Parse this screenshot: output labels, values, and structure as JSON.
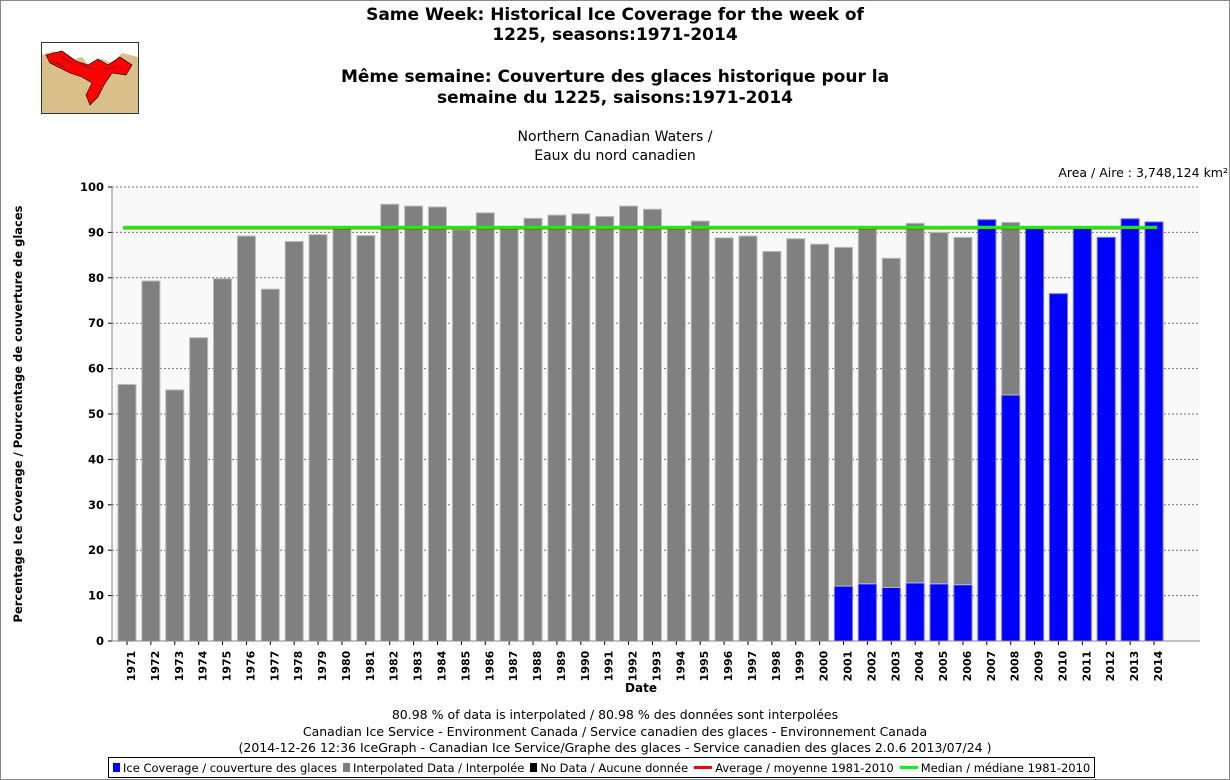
{
  "title": {
    "en_line1": "Same Week: Historical Ice Coverage for the week of",
    "en_line2": "1225, seasons:1971-2014",
    "fr_line1": "Même semaine: Couverture des glaces historique pour la",
    "fr_line2": "semaine du 1225, saisons:1971-2014"
  },
  "region": {
    "line1": "Northern Canadian Waters /",
    "line2": "Eaux du nord canadien"
  },
  "area": "Area / Aire : 3,748,124 km²",
  "footer": {
    "interp": "80.98 % of data is interpolated / 80.98 % des données sont interpolées",
    "credit": "Canadian Ice Service - Environment Canada / Service canadien des glaces - Environnement Canada",
    "version": "(2014-12-26 12:36 IceGraph - Canadian Ice Service/Graphe des glaces - Service canadien des glaces 2.0.6 2013/07/24 )"
  },
  "legend": [
    {
      "label": "Ice Coverage / couverture des glaces",
      "color": "#0000ff",
      "kind": "box"
    },
    {
      "label": "Interpolated Data / Interpolée",
      "color": "#808080",
      "kind": "box"
    },
    {
      "label": "No Data / Aucune donnée",
      "color": "#000000",
      "kind": "box"
    },
    {
      "label": "Average / moyenne 1981-2010",
      "color": "#ff0000",
      "kind": "line"
    },
    {
      "label": "Median / médiane 1981-2010",
      "color": "#00ff00",
      "kind": "line"
    }
  ],
  "chart_data": {
    "type": "bar",
    "stacked": true,
    "xlabel": "Date",
    "ylabel": "Percentage Ice Coverage / Pourcentage de couverture de glaces",
    "ylim": [
      0,
      100
    ],
    "yticks": [
      0,
      10,
      20,
      30,
      40,
      50,
      60,
      70,
      80,
      90,
      100
    ],
    "grid": true,
    "legend_position": "bottom",
    "categories": [
      "1971",
      "1972",
      "1973",
      "1974",
      "1975",
      "1976",
      "1977",
      "1978",
      "1979",
      "1980",
      "1981",
      "1982",
      "1983",
      "1984",
      "1985",
      "1986",
      "1987",
      "1988",
      "1989",
      "1990",
      "1991",
      "1992",
      "1993",
      "1994",
      "1995",
      "1996",
      "1997",
      "1998",
      "1999",
      "2000",
      "2001",
      "2002",
      "2003",
      "2004",
      "2005",
      "2006",
      "2007",
      "2008",
      "2009",
      "2010",
      "2011",
      "2012",
      "2013",
      "2014"
    ],
    "series": [
      {
        "name": "Ice Coverage / couverture des glaces",
        "color": "#0000ff",
        "values": [
          0,
          0,
          0,
          0,
          0,
          0,
          0,
          0,
          0,
          0,
          0,
          0,
          0,
          0,
          0,
          0,
          0,
          0,
          0,
          0,
          0,
          0,
          0,
          0,
          0,
          0,
          0,
          0,
          0,
          0,
          12.1,
          12.6,
          11.8,
          12.8,
          12.6,
          12.4,
          92.8,
          54.2,
          90.8,
          76.5,
          91.2,
          88.9,
          93.0,
          92.3
        ]
      },
      {
        "name": "Interpolated Data / Interpolée",
        "color": "#808080",
        "values": [
          56.5,
          79.3,
          55.3,
          66.8,
          79.8,
          89.2,
          77.5,
          88.0,
          89.5,
          91.2,
          89.3,
          96.2,
          95.8,
          95.6,
          90.6,
          94.3,
          91.2,
          93.1,
          93.8,
          94.1,
          93.5,
          95.8,
          95.1,
          91.3,
          92.5,
          88.8,
          89.2,
          85.8,
          88.6,
          87.4,
          74.6,
          78.7,
          72.5,
          79.2,
          77.4,
          76.5,
          0,
          38.0,
          0,
          0,
          0,
          0,
          0,
          0
        ]
      }
    ],
    "reference_lines": [
      {
        "name": "Average / moyenne 1981-2010",
        "value": 90.9,
        "color": "#ff0000"
      },
      {
        "name": "Median / médiane 1981-2010",
        "value": 91.1,
        "color": "#00ff00"
      }
    ]
  }
}
